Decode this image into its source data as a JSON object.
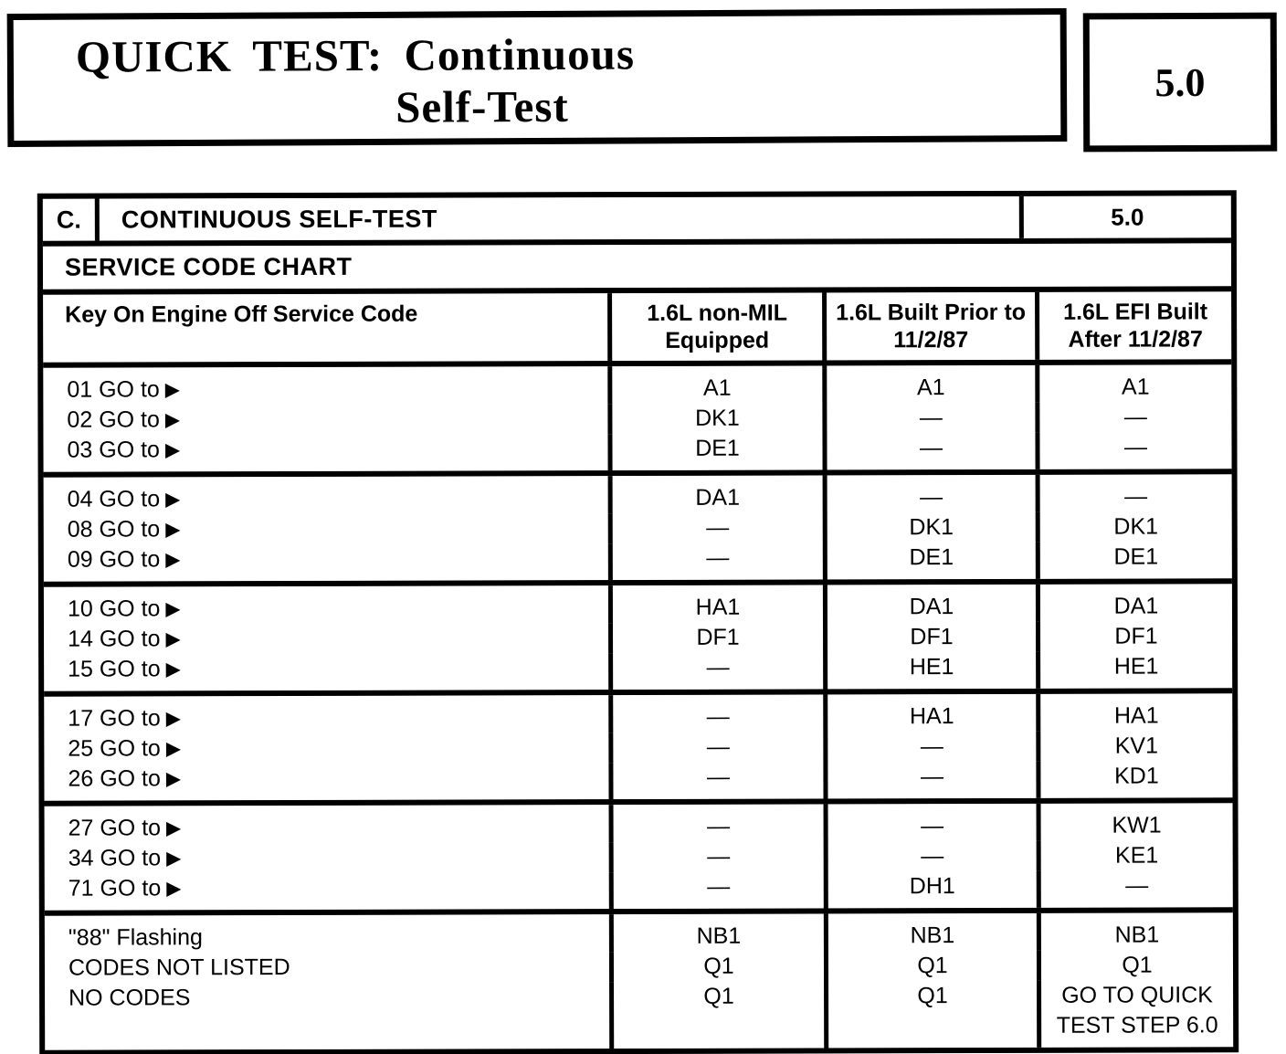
{
  "header": {
    "title_line1": "QUICK TEST: Continuous",
    "title_line2": "Self-Test",
    "section_number": "5.0"
  },
  "table": {
    "row_letter": "C.",
    "row_title": "CONTINUOUS SELF-TEST",
    "row_number": "5.0",
    "chart_title": "SERVICE CODE CHART",
    "arrow_glyph": "▶",
    "columns": [
      "Key On Engine Off Service Code",
      "1.6L non-MIL Equipped",
      "1.6L Built Prior to 11/2/87",
      "1.6L EFI Built After 11/2/87"
    ],
    "groups": [
      {
        "rows": [
          {
            "label": "01 GO to",
            "values": [
              "A1",
              "A1",
              "A1"
            ]
          },
          {
            "label": "02 GO to",
            "values": [
              "DK1",
              "—",
              "—"
            ]
          },
          {
            "label": "03 GO to",
            "values": [
              "DE1",
              "—",
              "—"
            ]
          }
        ]
      },
      {
        "rows": [
          {
            "label": "04 GO to",
            "values": [
              "DA1",
              "—",
              "—"
            ]
          },
          {
            "label": "08 GO to",
            "values": [
              "—",
              "DK1",
              "DK1"
            ]
          },
          {
            "label": "09 GO to",
            "values": [
              "—",
              "DE1",
              "DE1"
            ]
          }
        ]
      },
      {
        "rows": [
          {
            "label": "10 GO to",
            "values": [
              "HA1",
              "DA1",
              "DA1"
            ]
          },
          {
            "label": "14 GO to",
            "values": [
              "DF1",
              "DF1",
              "DF1"
            ]
          },
          {
            "label": "15 GO to",
            "values": [
              "—",
              "HE1",
              "HE1"
            ]
          }
        ]
      },
      {
        "rows": [
          {
            "label": "17 GO to",
            "values": [
              "—",
              "HA1",
              "HA1"
            ]
          },
          {
            "label": "25 GO to",
            "values": [
              "—",
              "—",
              "KV1"
            ]
          },
          {
            "label": "26 GO to",
            "values": [
              "—",
              "—",
              "KD1"
            ]
          }
        ]
      },
      {
        "rows": [
          {
            "label": "27 GO to",
            "values": [
              "—",
              "—",
              "KW1"
            ]
          },
          {
            "label": "34 GO to",
            "values": [
              "—",
              "—",
              "KE1"
            ]
          },
          {
            "label": "71 GO to",
            "values": [
              "—",
              "DH1",
              "—"
            ]
          }
        ]
      },
      {
        "rows": [
          {
            "label": "\"88\" Flashing",
            "values": [
              "NB1",
              "NB1",
              "NB1"
            ]
          },
          {
            "label": "CODES NOT LISTED",
            "values": [
              "Q1",
              "Q1",
              "Q1"
            ]
          },
          {
            "label": "NO CODES",
            "values": [
              "Q1",
              "Q1",
              "GO TO QUICK TEST STEP 6.0"
            ]
          }
        ]
      }
    ]
  }
}
